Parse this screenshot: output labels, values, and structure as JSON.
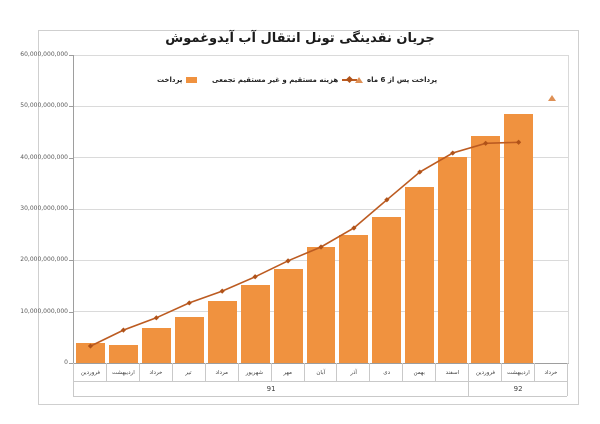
{
  "title": "جریان نقدینگی تونل انتقال آب آیدوغموش",
  "legend": {
    "bar_label": "پرداخت",
    "line_label": "هزینه مستقیم و غیر مستقیم تجمعی",
    "scatter_label": "پرداخت پس از 6 ماه"
  },
  "colors": {
    "bar": "#f0923f",
    "line": "#bc5b21",
    "line_marker": "#b05218",
    "scatter": "#de9055",
    "grid": "#dadada",
    "axis": "#9e9e9e",
    "cell_border": "#c9c9c9",
    "ylabel_text": "#595959"
  },
  "chart_data": {
    "type": "combo",
    "title": "جریان نقدینگی تونل انتقال آب آیدوغموش",
    "categories": [
      "فروردین",
      "اردیبهشت",
      "خرداد",
      "تیر",
      "مرداد",
      "شهریور",
      "مهر",
      "آبان",
      "آذر",
      "دی",
      "بهمن",
      "اسفند",
      "فروردین",
      "اردیبهشت",
      "خرداد"
    ],
    "year_groups": [
      {
        "label": "91",
        "span": 12
      },
      {
        "label": "92",
        "span": 3
      }
    ],
    "series": [
      {
        "name": "پرداخت",
        "type": "bar",
        "values": [
          3900000000,
          3600000000,
          6800000000,
          9000000000,
          12100000000,
          15200000000,
          18300000000,
          22600000000,
          25000000000,
          28500000000,
          34200000000,
          40100000000,
          44200000000,
          48600000000,
          null
        ]
      },
      {
        "name": "هزینه مستقیم و غیر مستقیم تجمعی",
        "type": "line",
        "values": [
          3300000000,
          6400000000,
          8800000000,
          11700000000,
          14000000000,
          16800000000,
          19900000000,
          22600000000,
          26300000000,
          31800000000,
          37200000000,
          40900000000,
          42800000000,
          43000000000,
          null
        ]
      },
      {
        "name": "پرداخت پس از 6 ماه",
        "type": "scatter",
        "values": [
          null,
          null,
          null,
          null,
          null,
          null,
          null,
          null,
          null,
          null,
          null,
          null,
          null,
          null,
          51700000000
        ]
      }
    ],
    "ylim": [
      0,
      60000000000
    ],
    "ytick_step": 10000000000,
    "ytick_labels": [
      "0",
      "10,000,000,000",
      "20,000,000,000",
      "30,000,000,000",
      "40,000,000,000",
      "50,000,000,000",
      "60,000,000,000"
    ],
    "grid": true,
    "legend_position": "top"
  }
}
